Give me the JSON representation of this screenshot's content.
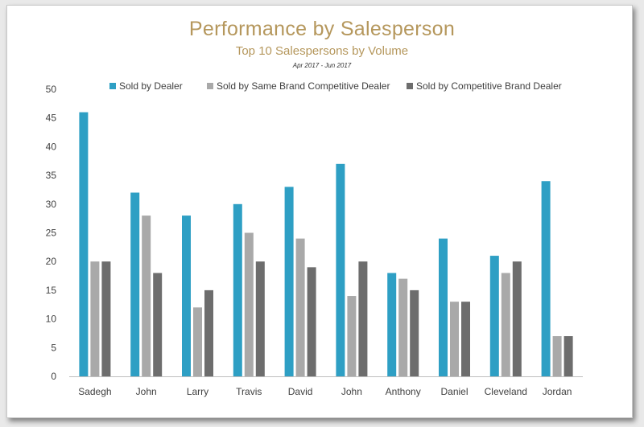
{
  "chart_data": {
    "type": "bar",
    "title": "Performance by Salesperson",
    "subtitle": "Top 10 Salespersons by Volume",
    "date_range": "Apr 2017 - Jun 2017",
    "categories": [
      "Sadegh",
      "John",
      "Larry",
      "Travis",
      "David",
      "John",
      "Anthony",
      "Daniel",
      "Cleveland",
      "Jordan"
    ],
    "series": [
      {
        "name": "Sold by Dealer",
        "color": "#2e9fc4",
        "values": [
          46,
          32,
          28,
          30,
          33,
          37,
          18,
          24,
          21,
          34
        ]
      },
      {
        "name": "Sold by Same Brand Competitive Dealer",
        "color": "#a9a9a9",
        "values": [
          20,
          28,
          12,
          25,
          24,
          14,
          17,
          13,
          18,
          7
        ]
      },
      {
        "name": "Sold by Competitive Brand Dealer",
        "color": "#6d6d6d",
        "values": [
          20,
          18,
          15,
          20,
          19,
          20,
          15,
          13,
          20,
          7
        ]
      }
    ],
    "ylim": [
      0,
      50
    ],
    "yticks": [
      0,
      5,
      10,
      15,
      20,
      25,
      30,
      35,
      40,
      45,
      50
    ],
    "grid": false,
    "legend_position": "top"
  }
}
